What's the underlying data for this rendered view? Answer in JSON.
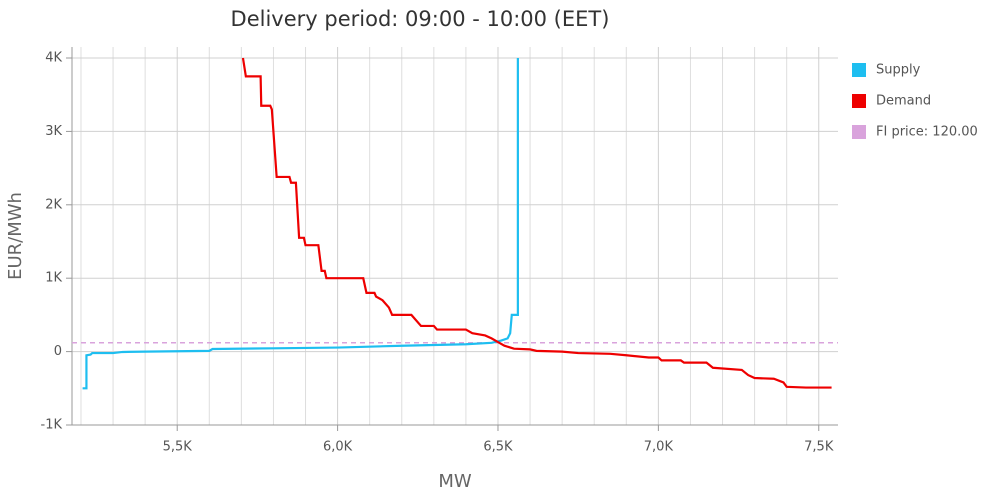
{
  "chart_data": {
    "type": "line",
    "title": "Delivery period: 09:00 - 10:00 (EET)",
    "x_label": "MW",
    "y_label": "EUR/MWh",
    "xlim": [
      5172,
      7560
    ],
    "ylim": [
      -1000,
      4150
    ],
    "xticks": [
      {
        "value": 5500,
        "label": "5,5K"
      },
      {
        "value": 6000,
        "label": "6,0K"
      },
      {
        "value": 6500,
        "label": "6,5K"
      },
      {
        "value": 7000,
        "label": "7,0K"
      },
      {
        "value": 7500,
        "label": "7,5K"
      }
    ],
    "x_minor_grid": [
      5200,
      5300,
      5400,
      5600,
      5700,
      5800,
      5900,
      6100,
      6200,
      6300,
      6400,
      6600,
      6700,
      6800,
      6900,
      7100,
      7200,
      7300,
      7400
    ],
    "yticks": [
      {
        "value": -1000,
        "label": "-1K"
      },
      0,
      {
        "value": 1000,
        "label": "1K"
      },
      {
        "value": 2000,
        "label": "2K"
      },
      {
        "value": 3000,
        "label": "3K"
      },
      {
        "value": 4000,
        "label": "4K"
      }
    ],
    "grid": true,
    "legend": "right",
    "series": [
      {
        "name": "Supply",
        "color": "#1ebef0",
        "x": [
          5205,
          5217,
          5217,
          5230,
          5235,
          5300,
          5330,
          5400,
          5600,
          5610,
          5800,
          6000,
          6200,
          6400,
          6480,
          6510,
          6530,
          6538,
          6543,
          6562,
          6562
        ],
        "values": [
          -500,
          -500,
          -50,
          -40,
          -20,
          -20,
          -5,
          0,
          10,
          35,
          45,
          55,
          80,
          100,
          120,
          150,
          180,
          250,
          500,
          500,
          4000
        ]
      },
      {
        "name": "Demand",
        "color": "#ee0000",
        "x": [
          5705,
          5714,
          5760,
          5762,
          5790,
          5795,
          5810,
          5850,
          5855,
          5870,
          5880,
          5895,
          5900,
          5940,
          5950,
          5960,
          5965,
          6080,
          6090,
          6115,
          6120,
          6140,
          6160,
          6170,
          6230,
          6260,
          6300,
          6310,
          6400,
          6420,
          6460,
          6480,
          6500,
          6520,
          6550,
          6600,
          6620,
          6700,
          6750,
          6850,
          6900,
          6970,
          7000,
          7010,
          7070,
          7080,
          7150,
          7170,
          7260,
          7280,
          7300,
          7360,
          7390,
          7400,
          7460,
          7540
        ],
        "values": [
          4000,
          3750,
          3750,
          3350,
          3350,
          3300,
          2380,
          2380,
          2300,
          2300,
          1550,
          1550,
          1450,
          1450,
          1100,
          1100,
          1000,
          1000,
          800,
          800,
          750,
          700,
          600,
          500,
          500,
          350,
          350,
          300,
          300,
          250,
          220,
          180,
          130,
          80,
          40,
          30,
          10,
          0,
          -20,
          -30,
          -50,
          -80,
          -80,
          -120,
          -120,
          -150,
          -150,
          -220,
          -250,
          -320,
          -360,
          -370,
          -420,
          -480,
          -490,
          -490
        ]
      }
    ],
    "reference_line": {
      "name": "FI price: 120.00",
      "value": 120,
      "color": "#d9a3dc"
    }
  }
}
